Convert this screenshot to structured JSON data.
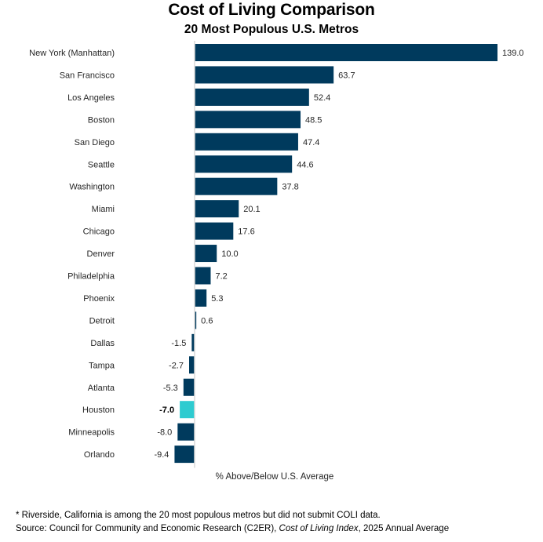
{
  "chart_data": {
    "type": "bar",
    "orientation": "horizontal",
    "title": "Cost of Living Comparison",
    "subtitle": "20 Most Populous U.S. Metros",
    "xlabel": "% Above/Below U.S. Average",
    "ylabel": "",
    "xlim": [
      -9.4,
      139.0
    ],
    "grid": false,
    "legend": "none",
    "categories": [
      "New York (Manhattan)",
      "San Francisco",
      "Los Angeles",
      "Boston",
      "San Diego",
      "Seattle",
      "Washington",
      "Miami",
      "Chicago",
      "Denver",
      "Philadelphia",
      "Phoenix",
      "Detroit",
      "Dallas",
      "Tampa",
      "Atlanta",
      "Houston",
      "Minneapolis",
      "Orlando"
    ],
    "values": [
      139.0,
      63.7,
      52.4,
      48.5,
      47.4,
      44.6,
      37.8,
      20.1,
      17.6,
      10.0,
      7.2,
      5.3,
      0.6,
      -1.5,
      -2.7,
      -5.3,
      -7.0,
      -8.0,
      -9.4
    ],
    "value_labels": [
      "139.0",
      "63.7",
      "52.4",
      "48.5",
      "47.4",
      "44.6",
      "37.8",
      "20.1",
      "17.6",
      "10.0",
      "7.2",
      "5.3",
      "0.6",
      "-1.5",
      "-2.7",
      "-5.3",
      "-7.0",
      "-8.0",
      "-9.4"
    ],
    "highlight": "Houston",
    "colors": {
      "default": "#003A5D",
      "highlight": "#2ECBD0",
      "axis": "#D9D9D9"
    }
  },
  "footnote": "* Riverside, California is among the 20 most populous metros but did not submit COLI data.",
  "source": {
    "prefix": "Source: Council for Community and Economic Research (C2ER), ",
    "italic": "Cost of Living Index",
    "suffix": ", 2025 Annual Average"
  }
}
